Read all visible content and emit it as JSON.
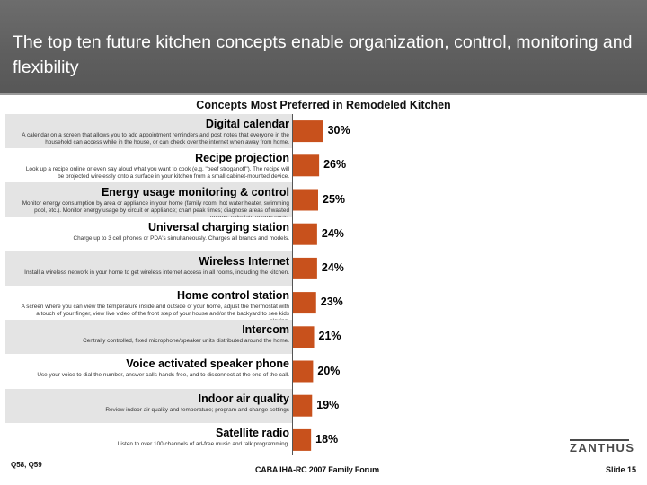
{
  "title": "The top ten future kitchen concepts enable organization, control, monitoring and flexibility",
  "chart_data": {
    "type": "bar",
    "orientation": "horizontal",
    "title": "Concepts Most Preferred in Remodeled Kitchen",
    "categories": [
      "Digital calendar",
      "Recipe projection",
      "Energy usage monitoring & control",
      "Universal charging station",
      "Wireless Internet",
      "Home control station",
      "Intercom",
      "Voice activated speaker phone",
      "Indoor air quality",
      "Satellite radio"
    ],
    "descriptions": [
      "A calendar on a screen that allows you to add appointment reminders and post notes that everyone in the household can access while in the house, or can check over the internet when away from home.",
      "Look up a recipe online or even say aloud what you want to cook (e.g. \"beef stroganoff\"). The recipe will be projected wirelessly onto a surface in your kitchen from a small cabinet-mounted device.",
      "Monitor energy consumption by area or appliance in your home (family room, hot water heater, swimming pool, etc.). Monitor energy usage by circuit or appliance; chart peak times; diagnose areas of wasted energy; calculate energy costs.",
      "Charge up to 3 cell phones or PDA's simultaneously. Charges all brands and models.",
      "Install a wireless network in your home to get wireless internet access in all rooms, including the kitchen.",
      "A screen where you can view the temperature inside and outside of your home, adjust the thermostat with a touch of your finger, view live video of the front step of your house and/or the backyard to see kids playing.",
      "Centrally controlled, fixed microphone/speaker units distributed around the home.",
      "Use your voice to dial the number, answer calls hands-free, and to disconnect at the end of the call.",
      "Review indoor air quality and temperature; program and change settings",
      "Listen to over 100 channels of ad-free music and talk programming."
    ],
    "values": [
      30,
      26,
      25,
      24,
      24,
      23,
      21,
      20,
      19,
      18
    ],
    "labels": [
      "30%",
      "26%",
      "25%",
      "24%",
      "24%",
      "23%",
      "21%",
      "20%",
      "19%",
      "18%"
    ],
    "xlim": [
      0,
      100
    ],
    "bar_color": "#c8511c",
    "grid": false
  },
  "footer": {
    "source": "Q58, Q59",
    "event": "CABA IHA-RC 2007 Family Forum",
    "slide": "Slide 15",
    "logo": "ZANTHUS"
  }
}
